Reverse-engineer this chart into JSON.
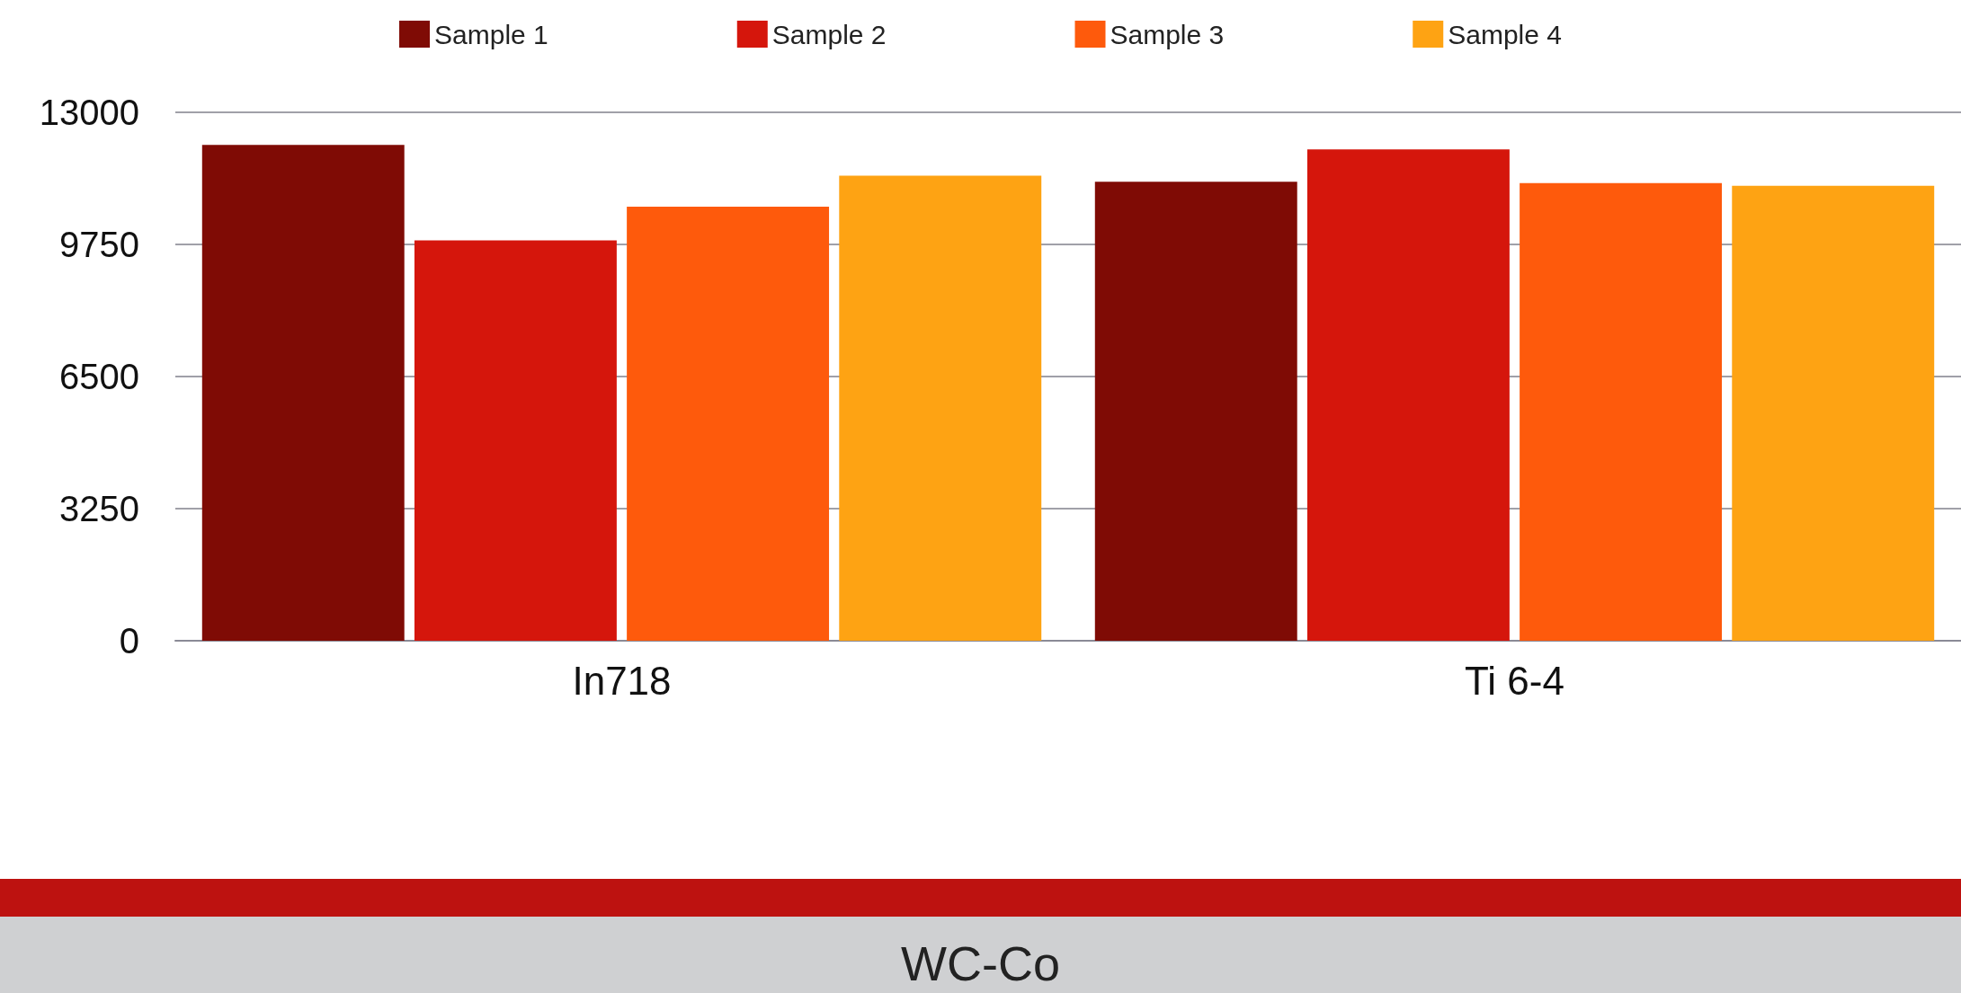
{
  "chart_data": {
    "type": "bar",
    "title": "WC-Co",
    "categories": [
      "In718",
      "Ti 6-4"
    ],
    "series": [
      {
        "name": "Sample 1",
        "color": "#7f0b05",
        "values": [
          12200,
          11290
        ]
      },
      {
        "name": "Sample 2",
        "color": "#d5160c",
        "values": [
          9850,
          12090
        ]
      },
      {
        "name": "Sample 3",
        "color": "#fe5a0c",
        "values": [
          10680,
          11260
        ]
      },
      {
        "name": "Sample 4",
        "color": "#fea313",
        "values": [
          11440,
          11190
        ]
      }
    ],
    "ylim": [
      0,
      13000
    ],
    "yticks": [
      0,
      3250,
      6500,
      9750,
      13000
    ],
    "grid": "y",
    "legend": "top"
  }
}
